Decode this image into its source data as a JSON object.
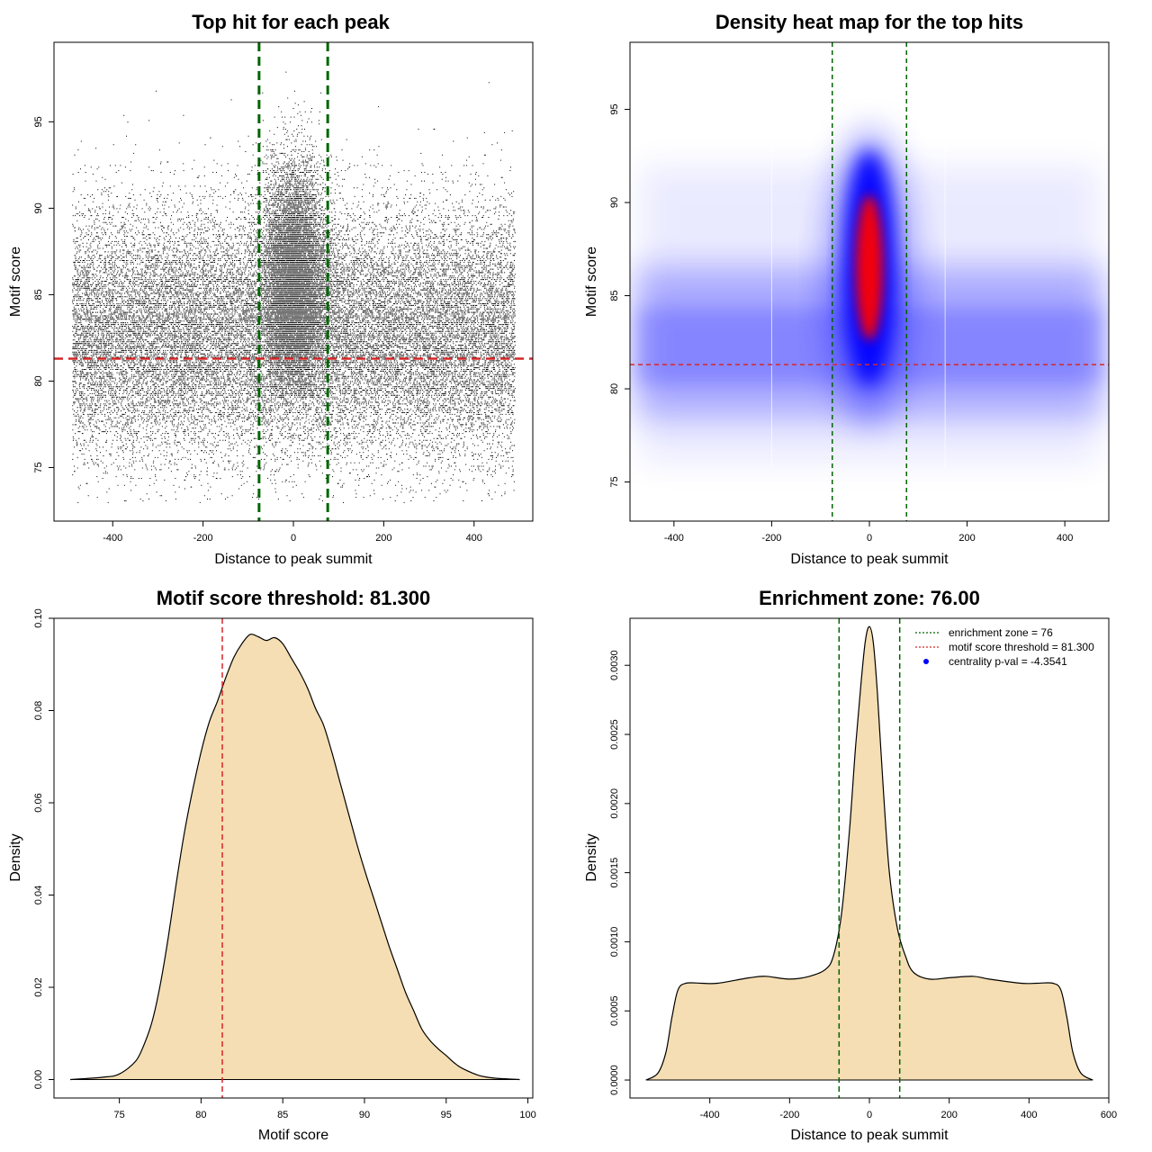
{
  "chart_data": [
    {
      "type": "scatter",
      "title": "Top hit for each peak",
      "xlabel": "Distance to peak summit",
      "ylabel": "Motif score",
      "xlim": [
        -530,
        530
      ],
      "ylim": [
        71.9,
        99.6
      ],
      "xticks": [
        -400,
        -200,
        0,
        200,
        400
      ],
      "yticks": [
        75,
        80,
        85,
        90,
        95
      ],
      "vlines": {
        "color": "#006400",
        "values": [
          -76,
          76
        ]
      },
      "hline": {
        "color": "#d62728",
        "value": 81.3
      },
      "point_color": "#000000",
      "distribution": {
        "background_x_range": [
          -490,
          490
        ],
        "background_score_mean": 82.8,
        "background_score_sd": 3.6,
        "central_x_sd": 34,
        "central_score_mean": 85.8,
        "central_score_sd": 3.3,
        "approx_points": 40000
      }
    },
    {
      "type": "heatmap",
      "title": "Density heat map for the top hits",
      "xlabel": "Distance to peak summit",
      "ylabel": "Motif score",
      "xlim": [
        -490,
        490
      ],
      "ylim": [
        72.9,
        98.6
      ],
      "xticks": [
        -400,
        -200,
        0,
        200,
        400
      ],
      "yticks": [
        75,
        80,
        85,
        90,
        95
      ],
      "vlines": {
        "color": "#006400",
        "values": [
          -76,
          76
        ]
      },
      "hline": {
        "color": "#d62728",
        "value": 81.3
      },
      "color_scale": [
        "#ffffff",
        "#0000ff",
        "#ff0000"
      ],
      "peak": {
        "x": 0,
        "y": 86.5
      }
    },
    {
      "type": "area",
      "title": "Motif score threshold: 81.300",
      "xlabel": "Motif score",
      "ylabel": "Density",
      "xlim": [
        71,
        100.3
      ],
      "ylim": [
        -0.004,
        0.1
      ],
      "xticks": [
        75,
        80,
        85,
        90,
        95,
        100
      ],
      "yticks": [
        0.0,
        0.02,
        0.04,
        0.06,
        0.08,
        0.1
      ],
      "ytick_labels": [
        "0.00",
        "0.02",
        "0.04",
        "0.06",
        "0.08",
        "0.10"
      ],
      "fill": "#f5deb3",
      "vline": {
        "color": "#d62728",
        "value": 81.3
      },
      "x": [
        72,
        74,
        75,
        76,
        76.5,
        77,
        77.5,
        78,
        78.5,
        79,
        79.5,
        80,
        80.5,
        81,
        81.5,
        82,
        82.5,
        83,
        83.5,
        84,
        84.5,
        85,
        85.5,
        86,
        86.5,
        87,
        87.5,
        88,
        88.5,
        89,
        89.5,
        90,
        90.5,
        91,
        91.5,
        92,
        92.5,
        93,
        93.5,
        94,
        94.5,
        95,
        95.5,
        96,
        97,
        98,
        99.5
      ],
      "y": [
        0.0,
        0.0005,
        0.0012,
        0.004,
        0.0075,
        0.0125,
        0.0205,
        0.031,
        0.043,
        0.054,
        0.063,
        0.071,
        0.0775,
        0.082,
        0.087,
        0.0915,
        0.0945,
        0.0965,
        0.096,
        0.0952,
        0.0958,
        0.0945,
        0.0915,
        0.0885,
        0.085,
        0.0805,
        0.0768,
        0.071,
        0.0645,
        0.058,
        0.0515,
        0.0455,
        0.04,
        0.0345,
        0.029,
        0.024,
        0.019,
        0.015,
        0.011,
        0.0085,
        0.0067,
        0.0052,
        0.0036,
        0.0024,
        0.0009,
        0.0003,
        0.0
      ]
    },
    {
      "type": "area",
      "title": "Enrichment zone: 76.00",
      "xlabel": "Distance to peak summit",
      "ylabel": "Density",
      "xlim": [
        -600,
        600
      ],
      "ylim": [
        -0.00013,
        0.00334
      ],
      "xticks": [
        -400,
        -200,
        0,
        200,
        400,
        600
      ],
      "yticks": [
        0.0,
        0.0005,
        0.001,
        0.0015,
        0.002,
        0.0025,
        0.003
      ],
      "ytick_labels": [
        "0.0000",
        "0.0005",
        "0.0010",
        "0.0015",
        "0.0020",
        "0.0025",
        "0.0030"
      ],
      "fill": "#f5deb3",
      "vlines": {
        "color": "#006400",
        "values": [
          -76,
          76
        ]
      },
      "x": [
        -560,
        -530,
        -510,
        -495,
        -480,
        -460,
        -420,
        -380,
        -300,
        -260,
        -200,
        -150,
        -110,
        -90,
        -70,
        -50,
        -35,
        -20,
        -10,
        0,
        10,
        20,
        35,
        50,
        70,
        90,
        110,
        150,
        200,
        260,
        300,
        380,
        420,
        460,
        480,
        495,
        510,
        530,
        560
      ],
      "y": [
        0.0,
        5e-05,
        0.0002,
        0.00045,
        0.00065,
        0.0007,
        0.0007,
        0.0007,
        0.00074,
        0.00075,
        0.00073,
        0.00075,
        0.0008,
        0.0009,
        0.0012,
        0.0018,
        0.0024,
        0.0029,
        0.00318,
        0.00328,
        0.00316,
        0.0028,
        0.0021,
        0.0015,
        0.0011,
        0.0009,
        0.00078,
        0.00073,
        0.00074,
        0.00075,
        0.00073,
        0.0007,
        0.0007,
        0.0007,
        0.00065,
        0.00045,
        0.0002,
        5e-05,
        0.0
      ],
      "legend": {
        "position": "top-right",
        "entries": [
          {
            "label": "enrichment zone = 76",
            "color": "#006400",
            "style": "dotted"
          },
          {
            "label": "motif score threshold = 81.300",
            "color": "#d62728",
            "style": "dotted"
          },
          {
            "label": "centrality p-val = -4.3541",
            "color": "#0000ff",
            "style": "point"
          }
        ]
      }
    }
  ]
}
